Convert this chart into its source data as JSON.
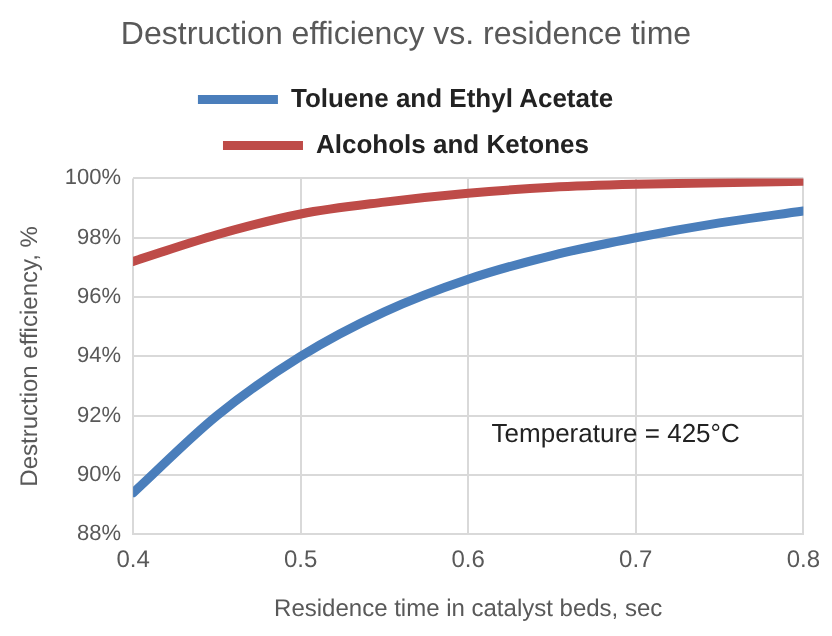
{
  "chart_data": {
    "type": "line",
    "title": "Destruction efficiency vs. residence time",
    "xlabel": "Residence time in catalyst beds, sec",
    "ylabel": "Destruction efficiency, %",
    "x": [
      0.4,
      0.45,
      0.5,
      0.55,
      0.6,
      0.65,
      0.7,
      0.75,
      0.8
    ],
    "series": [
      {
        "name": "Toluene and Ethyl Acetate",
        "color": "#4a7ebb",
        "values": [
          89.4,
          92.0,
          94.0,
          95.5,
          96.6,
          97.4,
          98.0,
          98.5,
          98.9
        ]
      },
      {
        "name": "Alcohols and Ketones",
        "color": "#be4b48",
        "values": [
          97.2,
          98.1,
          98.8,
          99.2,
          99.5,
          99.7,
          99.8,
          99.85,
          99.9
        ]
      }
    ],
    "xlim": [
      0.4,
      0.8
    ],
    "xticks": [
      0.4,
      0.5,
      0.6,
      0.7,
      0.8
    ],
    "ylim": [
      88,
      100
    ],
    "yticks": [
      {
        "value": 88,
        "label": "88%"
      },
      {
        "value": 90,
        "label": "90%"
      },
      {
        "value": 92,
        "label": "92%"
      },
      {
        "value": 94,
        "label": "94%"
      },
      {
        "value": 96,
        "label": "96%"
      },
      {
        "value": 98,
        "label": "98%"
      },
      {
        "value": 100,
        "label": "100%"
      }
    ],
    "annotations": [
      "Temperature = 425°C"
    ],
    "grid": true,
    "legend": "top",
    "marker": "none",
    "line_style": "solid"
  }
}
